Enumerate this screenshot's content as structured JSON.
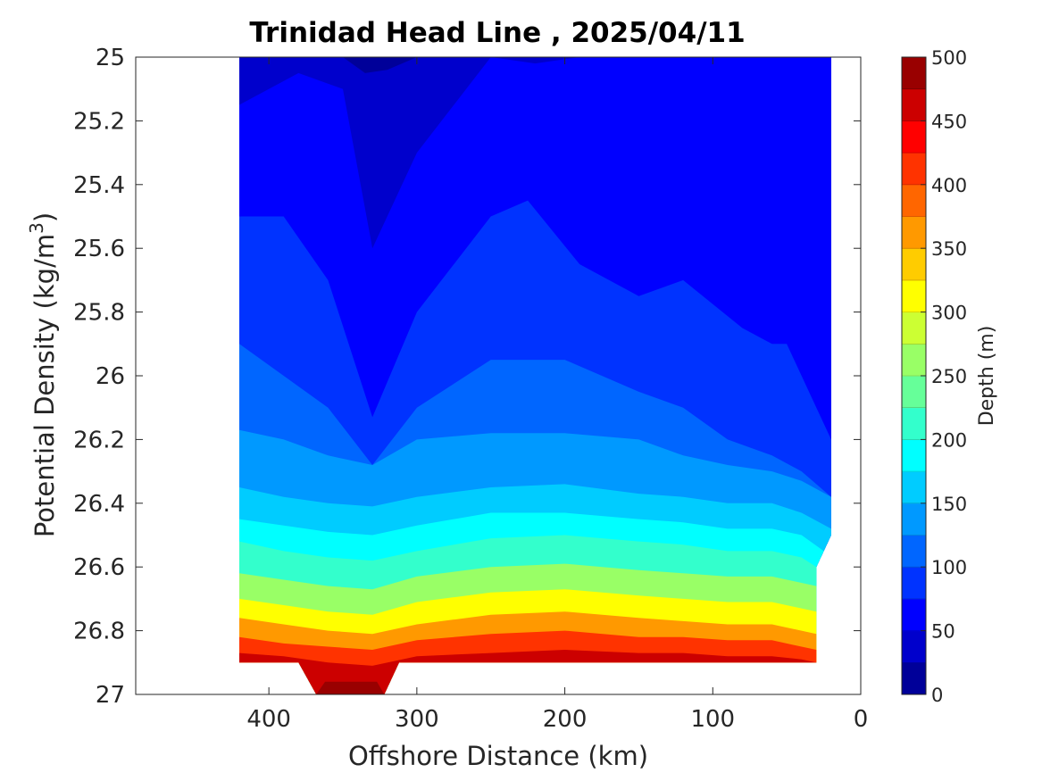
{
  "chart_data": {
    "type": "heatmap",
    "title": "Trinidad Head Line , 2025/04/11",
    "xlabel": "Offshore Distance (km)",
    "ylabel": "Potential Density (kg/m",
    "ylabel_sup": "3",
    "ylabel_close": ")",
    "xlim": [
      490,
      0
    ],
    "ylim": [
      25,
      27
    ],
    "x_reversed": true,
    "y_reversed": true,
    "x_ticks": [
      400,
      300,
      200,
      100,
      0
    ],
    "y_ticks": [
      25,
      25.2,
      25.4,
      25.6,
      25.8,
      26,
      26.2,
      26.4,
      26.6,
      26.8,
      27
    ],
    "y_tick_labels": [
      "25",
      "25.2",
      "25.4",
      "25.6",
      "25.8",
      "26",
      "26.2",
      "26.4",
      "26.6",
      "26.8",
      "27"
    ],
    "colorbar": {
      "label": "Depth (m)",
      "range": [
        0,
        500
      ],
      "ticks": [
        0,
        50,
        100,
        150,
        200,
        250,
        300,
        350,
        400,
        450,
        500
      ],
      "levels": 20,
      "colormap": "jet"
    },
    "contours": [
      {
        "depth": 25,
        "x": [
          420,
          380,
          350,
          335,
          320,
          300
        ],
        "y": [
          25,
          25,
          25,
          25.05,
          25.04,
          25
        ]
      },
      {
        "depth": 50,
        "x": [
          420,
          380,
          350,
          330,
          300,
          250,
          220,
          190
        ],
        "y": [
          25.15,
          25.05,
          25.1,
          25.6,
          25.3,
          25.0,
          25.02,
          25.0
        ]
      },
      {
        "depth": 75,
        "x": [
          420,
          390,
          360,
          330,
          300,
          250,
          225,
          190,
          150,
          120,
          80,
          60,
          50,
          40,
          30,
          20
        ],
        "y": [
          25.5,
          25.5,
          25.7,
          26.13,
          25.8,
          25.5,
          25.45,
          25.65,
          25.75,
          25.7,
          25.85,
          25.9,
          25.9,
          26.0,
          26.1,
          26.2
        ]
      },
      {
        "depth": 100,
        "x": [
          420,
          390,
          360,
          330,
          300,
          250,
          200,
          150,
          120,
          90,
          60,
          40,
          20
        ],
        "y": [
          25.9,
          26.0,
          26.1,
          26.28,
          26.1,
          25.95,
          25.95,
          26.05,
          26.1,
          26.2,
          26.25,
          26.3,
          26.38
        ]
      },
      {
        "depth": 125,
        "x": [
          420,
          390,
          360,
          330,
          300,
          250,
          200,
          150,
          120,
          90,
          60,
          40,
          20
        ],
        "y": [
          26.17,
          26.2,
          26.25,
          26.28,
          26.2,
          26.18,
          26.18,
          26.2,
          26.25,
          26.28,
          26.3,
          26.33,
          26.38
        ]
      },
      {
        "depth": 150,
        "x": [
          420,
          390,
          360,
          330,
          300,
          250,
          200,
          150,
          120,
          90,
          60,
          40,
          20
        ],
        "y": [
          26.35,
          26.38,
          26.4,
          26.41,
          26.38,
          26.35,
          26.34,
          26.37,
          26.38,
          26.4,
          26.4,
          26.43,
          26.48
        ]
      },
      {
        "depth": 175,
        "x": [
          420,
          390,
          360,
          330,
          300,
          250,
          200,
          150,
          120,
          90,
          60,
          40,
          25
        ],
        "y": [
          26.45,
          26.47,
          26.49,
          26.5,
          26.47,
          26.43,
          26.43,
          26.45,
          26.46,
          26.48,
          26.48,
          26.5,
          26.55
        ]
      },
      {
        "depth": 200,
        "x": [
          420,
          390,
          360,
          330,
          300,
          250,
          200,
          150,
          120,
          90,
          60,
          40,
          30
        ],
        "y": [
          26.52,
          26.55,
          26.57,
          26.58,
          26.55,
          26.51,
          26.5,
          26.52,
          26.53,
          26.55,
          26.55,
          26.57,
          26.6
        ]
      },
      {
        "depth": 250,
        "x": [
          420,
          390,
          360,
          330,
          300,
          250,
          200,
          150,
          120,
          90,
          60,
          40,
          30
        ],
        "y": [
          26.62,
          26.64,
          26.66,
          26.67,
          26.63,
          26.6,
          26.59,
          26.61,
          26.62,
          26.63,
          26.63,
          26.65,
          26.66
        ]
      },
      {
        "depth": 300,
        "x": [
          420,
          390,
          360,
          330,
          300,
          250,
          200,
          150,
          120,
          90,
          60,
          40,
          30
        ],
        "y": [
          26.7,
          26.72,
          26.74,
          26.75,
          26.71,
          26.68,
          26.67,
          26.69,
          26.7,
          26.71,
          26.71,
          26.73,
          26.74
        ]
      },
      {
        "depth": 350,
        "x": [
          420,
          390,
          360,
          330,
          300,
          250,
          200,
          150,
          120,
          90,
          60,
          40,
          30
        ],
        "y": [
          26.76,
          26.78,
          26.8,
          26.81,
          26.78,
          26.75,
          26.74,
          26.76,
          26.77,
          26.78,
          26.78,
          26.8,
          26.81
        ]
      },
      {
        "depth": 400,
        "x": [
          420,
          390,
          360,
          330,
          300,
          250,
          200,
          150,
          120,
          90,
          60,
          40,
          30
        ],
        "y": [
          26.82,
          26.84,
          26.85,
          26.86,
          26.83,
          26.81,
          26.8,
          26.82,
          26.82,
          26.83,
          26.83,
          26.85,
          26.86
        ]
      },
      {
        "depth": 450,
        "x": [
          420,
          390,
          360,
          330,
          300,
          250,
          200,
          150,
          120,
          90,
          60,
          40,
          30
        ],
        "y": [
          26.87,
          26.88,
          26.9,
          26.91,
          26.88,
          26.87,
          26.86,
          26.87,
          26.87,
          26.88,
          26.88,
          26.89,
          26.9
        ]
      }
    ],
    "data_extent": {
      "x": [
        420,
        420,
        380,
        368,
        322,
        312,
        30,
        30,
        20,
        20
      ],
      "y": [
        25,
        26.9,
        26.9,
        27,
        27,
        26.9,
        26.9,
        26.6,
        26.5,
        25
      ]
    }
  }
}
